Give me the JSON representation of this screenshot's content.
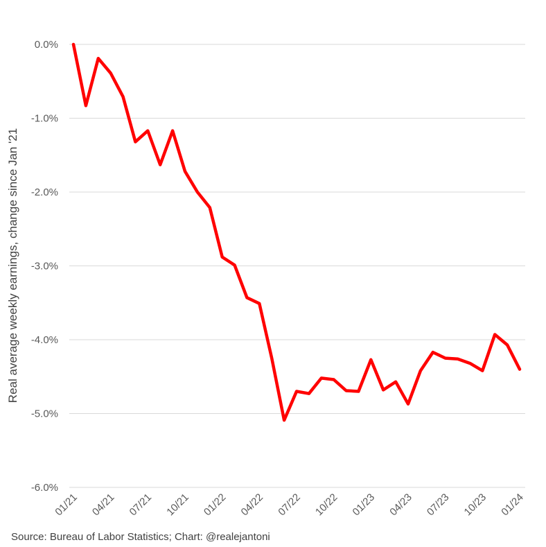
{
  "chart_data": {
    "type": "line",
    "title": "",
    "xlabel": "",
    "ylabel": "Real average weekly earnings, change since Jan '21",
    "ylim": [
      -6.0,
      0.0
    ],
    "y_ticks": [
      "0.0%",
      "-1.0%",
      "-2.0%",
      "-3.0%",
      "-4.0%",
      "-5.0%",
      "-6.0%"
    ],
    "y_tick_values": [
      0,
      -1,
      -2,
      -3,
      -4,
      -5,
      -6
    ],
    "x_tick_labels": [
      "01/21",
      "04/21",
      "07/21",
      "10/21",
      "01/22",
      "04/22",
      "07/22",
      "10/22",
      "01/23",
      "04/23",
      "07/23",
      "10/23",
      "01/24"
    ],
    "gridlines": true,
    "series": [
      {
        "name": "Real average weekly earnings change",
        "color": "#ff0000",
        "x": [
          "01/21",
          "02/21",
          "03/21",
          "04/21",
          "05/21",
          "06/21",
          "07/21",
          "08/21",
          "09/21",
          "10/21",
          "11/21",
          "12/21",
          "01/22",
          "02/22",
          "03/22",
          "04/22",
          "05/22",
          "06/22",
          "07/22",
          "08/22",
          "09/22",
          "10/22",
          "11/22",
          "12/22",
          "01/23",
          "02/23",
          "03/23",
          "04/23",
          "05/23",
          "06/23",
          "07/23",
          "08/23",
          "09/23",
          "10/23",
          "11/23",
          "12/23",
          "01/24"
        ],
        "values": [
          0.0,
          -0.83,
          -0.19,
          -0.39,
          -0.71,
          -1.32,
          -1.17,
          -1.63,
          -1.17,
          -1.72,
          -2.0,
          -2.21,
          -2.88,
          -2.99,
          -3.43,
          -3.51,
          -4.25,
          -5.09,
          -4.7,
          -4.73,
          -4.52,
          -4.54,
          -4.69,
          -4.7,
          -4.27,
          -4.68,
          -4.57,
          -4.87,
          -4.42,
          -4.17,
          -4.25,
          -4.26,
          -4.32,
          -4.42,
          -3.93,
          -4.07,
          -4.4
        ]
      }
    ]
  },
  "source_text": "Source: Bureau of Labor Statistics; Chart: @realejantoni"
}
